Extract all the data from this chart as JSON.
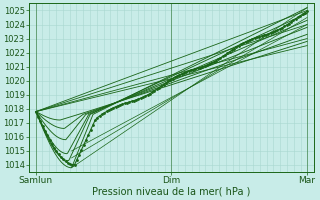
{
  "background_color": "#c8ece8",
  "grid_color": "#a8d8d0",
  "line_color": "#1a6618",
  "xlabel": "Pression niveau de la mer( hPa )",
  "x_tick_labels": [
    "Samlun",
    "Dim",
    "Mar"
  ],
  "x_tick_positions": [
    0.05,
    1.0,
    1.95
  ],
  "ylim": [
    1013.5,
    1025.5
  ],
  "yticks": [
    1014,
    1015,
    1016,
    1017,
    1018,
    1019,
    1020,
    1021,
    1022,
    1023,
    1024,
    1025
  ],
  "figsize": [
    3.2,
    2.0
  ],
  "dpi": 100,
  "xlim": [
    0.0,
    2.0
  ]
}
